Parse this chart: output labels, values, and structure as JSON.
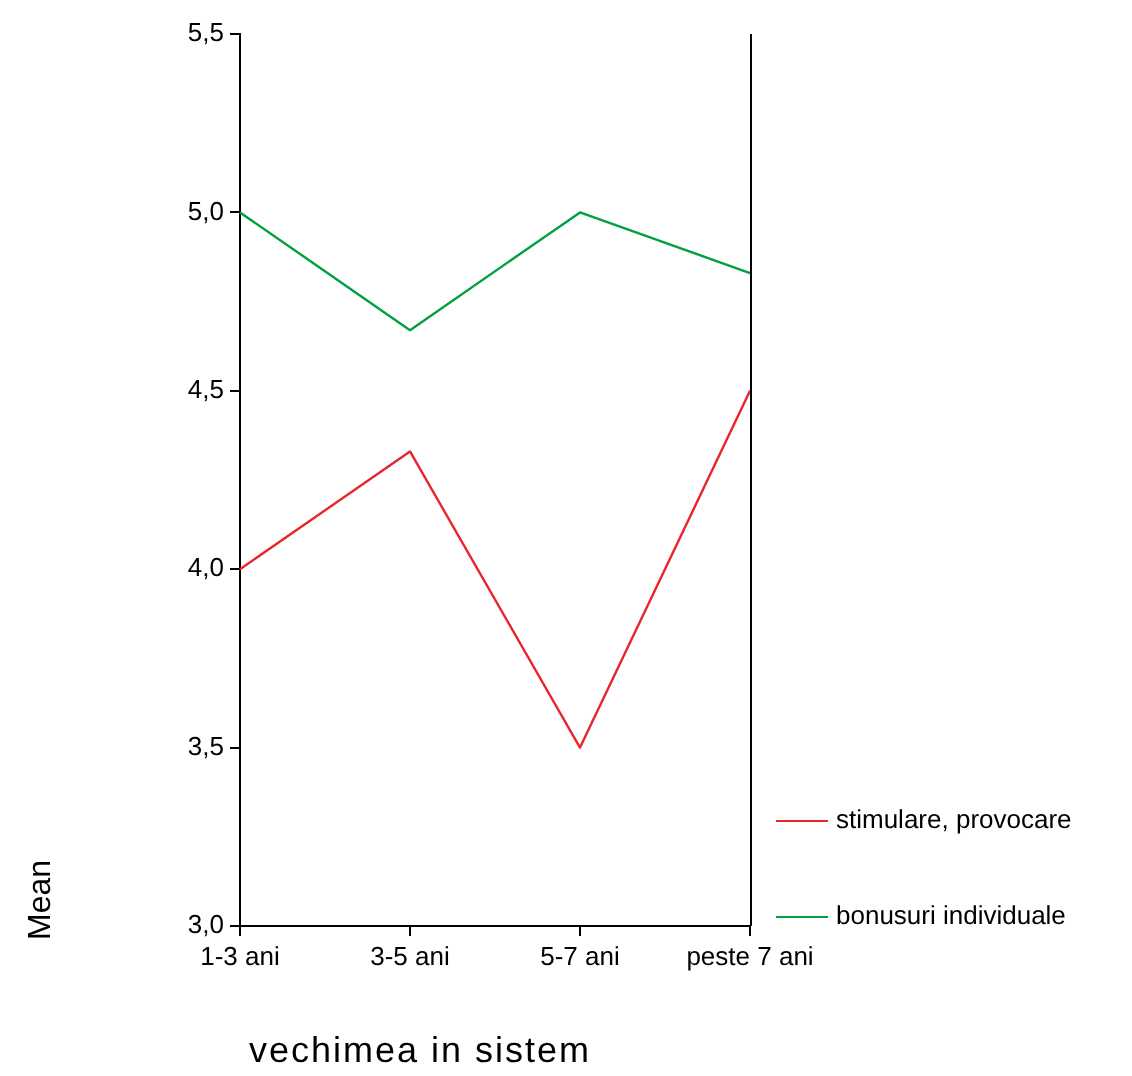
{
  "chart_data": {
    "type": "line",
    "xlabel": "vechimea in sistem",
    "ylabel": "Mean",
    "categories": [
      "1-3 ani",
      "3-5 ani",
      "5-7 ani",
      "peste 7 ani"
    ],
    "series": [
      {
        "name": "stimulare, provocare",
        "color": "#e8252b",
        "values": [
          4.0,
          4.33,
          3.5,
          4.5
        ]
      },
      {
        "name": "bonusuri individuale",
        "color": "#00a040",
        "values": [
          5.0,
          4.67,
          5.0,
          4.83
        ]
      }
    ],
    "ylim": [
      3.0,
      5.5
    ],
    "yticks": [
      {
        "value": 3.0,
        "label": "3,0"
      },
      {
        "value": 3.5,
        "label": "3,5"
      },
      {
        "value": 4.0,
        "label": "4,0"
      },
      {
        "value": 4.5,
        "label": "4,5"
      },
      {
        "value": 5.0,
        "label": "5,0"
      },
      {
        "value": 5.5,
        "label": "5,5"
      }
    ],
    "grid": false,
    "legend": "right",
    "marker": "none"
  }
}
